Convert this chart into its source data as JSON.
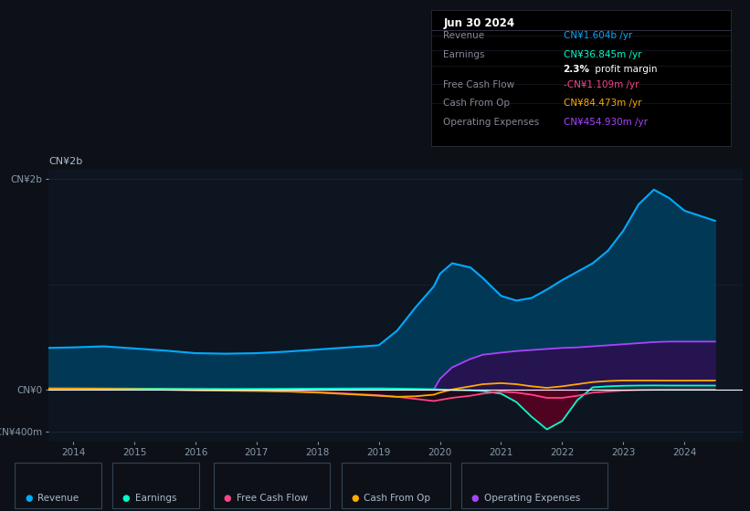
{
  "bg_color": "#0d1117",
  "plot_bg_color": "#0d1520",
  "grid_color": "#1e2d40",
  "title": "Jun 30 2024",
  "info_box_bg": "#000000",
  "info_box": {
    "rows": [
      {
        "label": "Revenue",
        "value": "CN¥1.604b /yr",
        "color": "#00aaff"
      },
      {
        "label": "Earnings",
        "value": "CN¥36.845m /yr",
        "color": "#00ffcc"
      },
      {
        "label": "",
        "value": "2.3% profit margin",
        "color": "#ffffff"
      },
      {
        "label": "Free Cash Flow",
        "value": "-CN¥1.109m /yr",
        "color": "#ff4488"
      },
      {
        "label": "Cash From Op",
        "value": "CN¥84.473m /yr",
        "color": "#ffaa00"
      },
      {
        "label": "Operating Expenses",
        "value": "CN¥454.930m /yr",
        "color": "#aa44ff"
      }
    ]
  },
  "ylabel_top": "CN¥2b",
  "ylim": [
    -500000000,
    2100000000
  ],
  "yticks": [
    -400000000,
    0,
    2000000000
  ],
  "ytick_labels": [
    "-CN¥400m",
    "CN¥0",
    "CN¥2b"
  ],
  "xlim_start": 2013.6,
  "xlim_end": 2024.95,
  "xticks": [
    2014,
    2015,
    2016,
    2017,
    2018,
    2019,
    2020,
    2021,
    2022,
    2023,
    2024
  ],
  "legend": [
    {
      "label": "Revenue",
      "color": "#00aaff"
    },
    {
      "label": "Earnings",
      "color": "#00ffcc"
    },
    {
      "label": "Free Cash Flow",
      "color": "#ff4488"
    },
    {
      "label": "Cash From Op",
      "color": "#ffaa00"
    },
    {
      "label": "Operating Expenses",
      "color": "#aa44ff"
    }
  ],
  "series": {
    "x": [
      2013.6,
      2014.0,
      2014.5,
      2015.0,
      2015.5,
      2016.0,
      2016.5,
      2017.0,
      2017.5,
      2018.0,
      2018.5,
      2019.0,
      2019.3,
      2019.6,
      2019.9,
      2020.0,
      2020.2,
      2020.5,
      2020.7,
      2021.0,
      2021.25,
      2021.5,
      2021.75,
      2022.0,
      2022.25,
      2022.5,
      2022.75,
      2023.0,
      2023.25,
      2023.5,
      2023.75,
      2024.0,
      2024.5
    ],
    "revenue": [
      395000000.0,
      400000000.0,
      410000000.0,
      390000000.0,
      370000000.0,
      345000000.0,
      340000000.0,
      345000000.0,
      360000000.0,
      380000000.0,
      400000000.0,
      420000000.0,
      560000000.0,
      780000000.0,
      980000000.0,
      1100000000.0,
      1200000000.0,
      1160000000.0,
      1060000000.0,
      890000000.0,
      845000000.0,
      870000000.0,
      950000000.0,
      1040000000.0,
      1120000000.0,
      1200000000.0,
      1320000000.0,
      1510000000.0,
      1760000000.0,
      1900000000.0,
      1820000000.0,
      1700000000.0,
      1604000000.0
    ],
    "earnings": [
      8000000.0,
      10000000.0,
      9000000.0,
      8000000.0,
      7000000.0,
      6000000.0,
      5000000.0,
      5000000.0,
      6000000.0,
      8000000.0,
      9000000.0,
      10000000.0,
      8000000.0,
      5000000.0,
      2000000.0,
      0,
      -5000000.0,
      -8000000.0,
      -15000000.0,
      -40000000.0,
      -120000000.0,
      -260000000.0,
      -380000000.0,
      -300000000.0,
      -100000000.0,
      20000000.0,
      30000000.0,
      35000000.0,
      37000000.0,
      38000000.0,
      37000000.0,
      37000000.0,
      36845000.0
    ],
    "free_cash_flow": [
      5000000.0,
      3000000.0,
      2000000.0,
      0,
      -2000000.0,
      -5000000.0,
      -8000000.0,
      -10000000.0,
      -15000000.0,
      -25000000.0,
      -40000000.0,
      -55000000.0,
      -70000000.0,
      -90000000.0,
      -110000000.0,
      -100000000.0,
      -80000000.0,
      -60000000.0,
      -40000000.0,
      -20000000.0,
      -30000000.0,
      -50000000.0,
      -80000000.0,
      -80000000.0,
      -60000000.0,
      -30000000.0,
      -20000000.0,
      -10000000.0,
      -5000000.0,
      -3000000.0,
      -2000000.0,
      -1000000.0,
      -1109000.0
    ],
    "cash_from_op": [
      10000000.0,
      8000000.0,
      5000000.0,
      2000000.0,
      -3000000.0,
      -8000000.0,
      -12000000.0,
      -15000000.0,
      -20000000.0,
      -30000000.0,
      -45000000.0,
      -60000000.0,
      -70000000.0,
      -65000000.0,
      -50000000.0,
      -30000000.0,
      0,
      30000000.0,
      50000000.0,
      60000000.0,
      50000000.0,
      30000000.0,
      15000000.0,
      30000000.0,
      50000000.0,
      70000000.0,
      80000000.0,
      85000000.0,
      85000000.0,
      85000000.0,
      84000000.0,
      84000000.0,
      84473000.0
    ],
    "op_expenses": [
      0,
      0,
      0,
      0,
      0,
      0,
      0,
      0,
      0,
      0,
      0,
      0,
      0,
      0,
      0,
      100000000.0,
      210000000.0,
      290000000.0,
      330000000.0,
      350000000.0,
      365000000.0,
      375000000.0,
      385000000.0,
      395000000.0,
      400000000.0,
      410000000.0,
      420000000.0,
      430000000.0,
      440000000.0,
      450000000.0,
      455000000.0,
      455000000.0,
      454930000.0
    ]
  }
}
